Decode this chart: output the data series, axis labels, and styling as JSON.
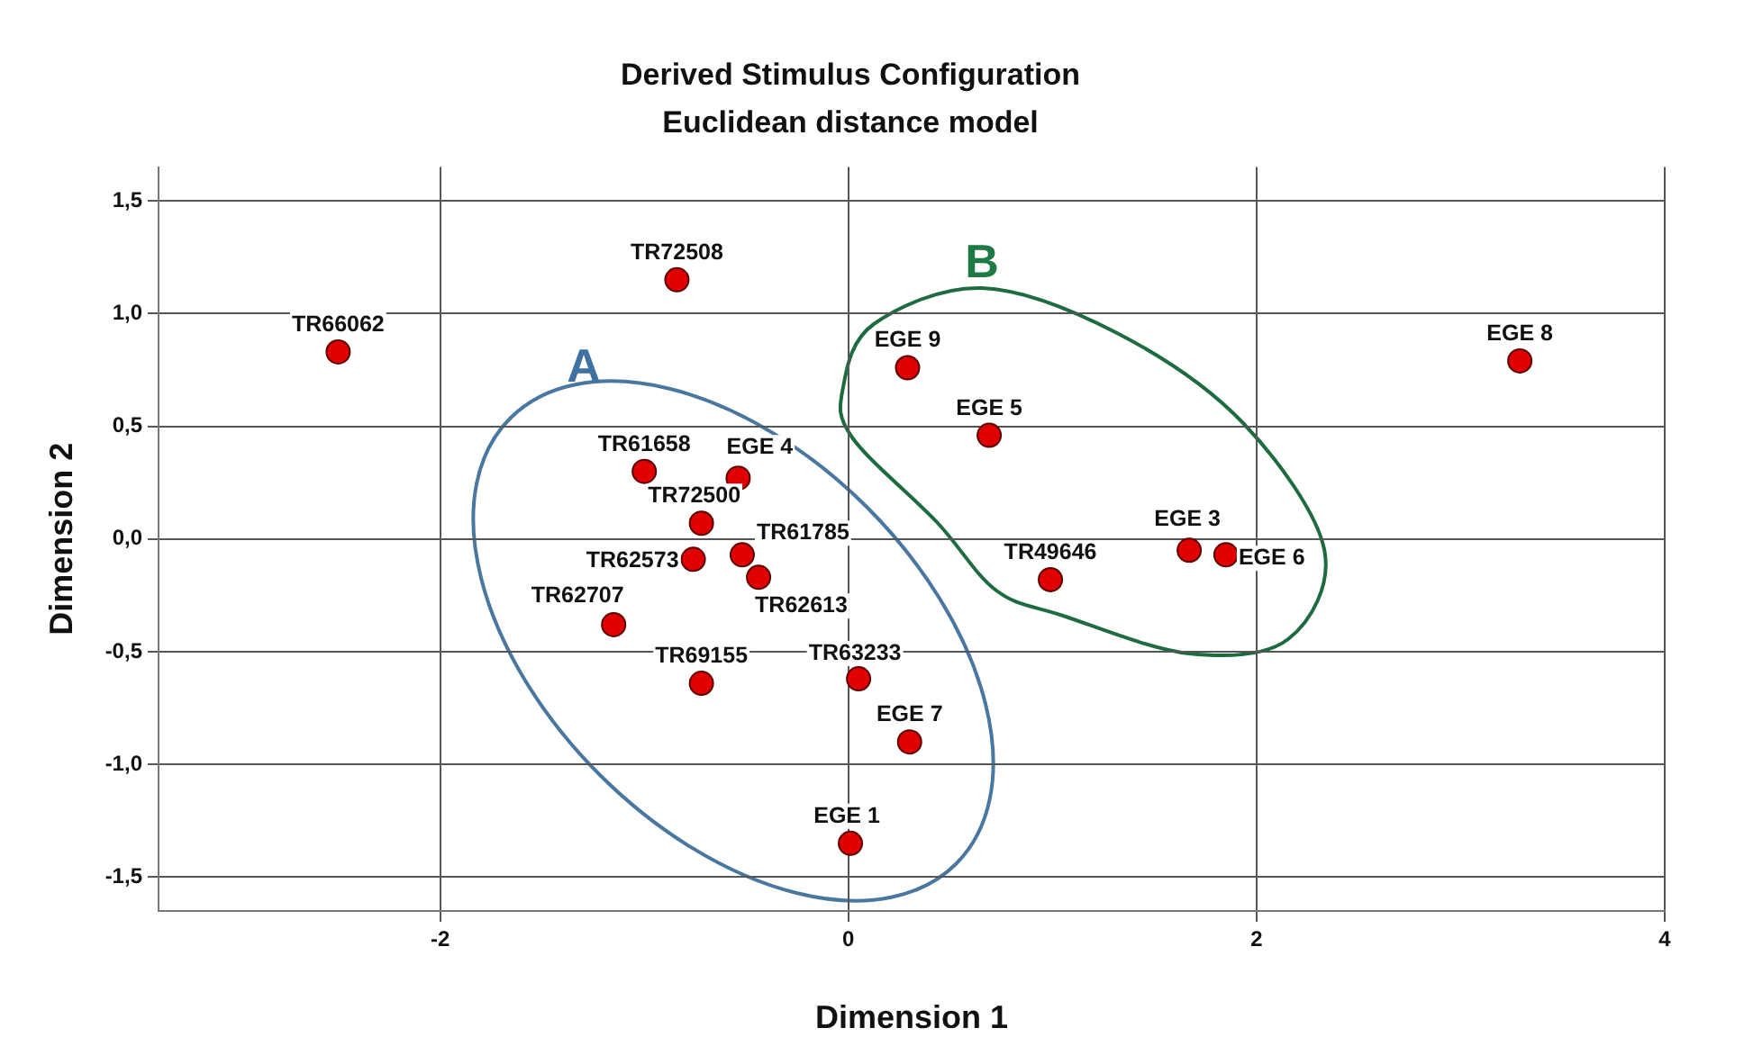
{
  "chart_data": {
    "type": "scatter",
    "title": "Derived Stimulus Configuration",
    "subtitle": "Euclidean distance model",
    "xlabel": "Dimension 1",
    "ylabel": "Dimension 2",
    "x": [
      -2.5,
      -0.84,
      -1.0,
      -0.54,
      -0.72,
      -0.76,
      -0.52,
      -0.44,
      -1.15,
      -0.72,
      0.05,
      0.3,
      0.01,
      0.29,
      0.69,
      0.99,
      1.67,
      1.85,
      3.29
    ],
    "series": [
      {
        "color": "#e00000",
        "values": [
          0.83,
          1.15,
          0.3,
          0.27,
          0.07,
          -0.09,
          -0.07,
          -0.17,
          -0.38,
          -0.64,
          -0.62,
          -0.9,
          -1.35,
          0.76,
          0.46,
          -0.18,
          -0.05,
          -0.07,
          0.79
        ]
      }
    ],
    "marker": "circle",
    "grid": true,
    "legend": false,
    "xlim": [
      -3.38,
      4.0
    ],
    "ylim": [
      -1.65,
      1.65
    ],
    "xticks": [
      -2,
      0,
      2,
      4
    ],
    "yticks": [
      {
        "value": -1.5,
        "label": "-1,5"
      },
      {
        "value": -1.0,
        "label": "-1,0"
      },
      {
        "value": -0.5,
        "label": "-0,5"
      },
      {
        "value": 0,
        "label": "0,0"
      },
      {
        "value": 0.5,
        "label": "0,5"
      },
      {
        "value": 1.0,
        "label": "1,0"
      },
      {
        "value": 1.5,
        "label": "1,5"
      }
    ],
    "annotations": [
      {
        "text": "TR66062",
        "x": -2.5,
        "y": 0.83
      },
      {
        "text": "TR72508",
        "x": -0.84,
        "y": 1.15
      },
      {
        "text": "TR61658",
        "x": -1.0,
        "y": 0.3
      },
      {
        "text": "EGE 4",
        "x": -0.54,
        "y": 0.27
      },
      {
        "text": "TR72500",
        "x": -0.72,
        "y": 0.07
      },
      {
        "text": "TR62573",
        "x": -0.76,
        "y": -0.09
      },
      {
        "text": "TR61785",
        "x": -0.52,
        "y": -0.07
      },
      {
        "text": "TR62613",
        "x": -0.44,
        "y": -0.17
      },
      {
        "text": "TR62707",
        "x": -1.15,
        "y": -0.38
      },
      {
        "text": "TR69155",
        "x": -0.72,
        "y": -0.64
      },
      {
        "text": "TR63233",
        "x": 0.05,
        "y": -0.62
      },
      {
        "text": "EGE 7",
        "x": 0.3,
        "y": -0.9
      },
      {
        "text": "EGE 1",
        "x": 0.01,
        "y": -1.35
      },
      {
        "text": "EGE 9",
        "x": 0.29,
        "y": 0.76
      },
      {
        "text": "EGE 5",
        "x": 0.69,
        "y": 0.46
      },
      {
        "text": "TR49646",
        "x": 0.99,
        "y": -0.18
      },
      {
        "text": "EGE 3",
        "x": 1.67,
        "y": -0.05
      },
      {
        "text": "EGE 6",
        "x": 1.85,
        "y": -0.07
      },
      {
        "text": "EGE 8",
        "x": 3.29,
        "y": 0.79
      },
      "A",
      "B"
    ]
  }
}
